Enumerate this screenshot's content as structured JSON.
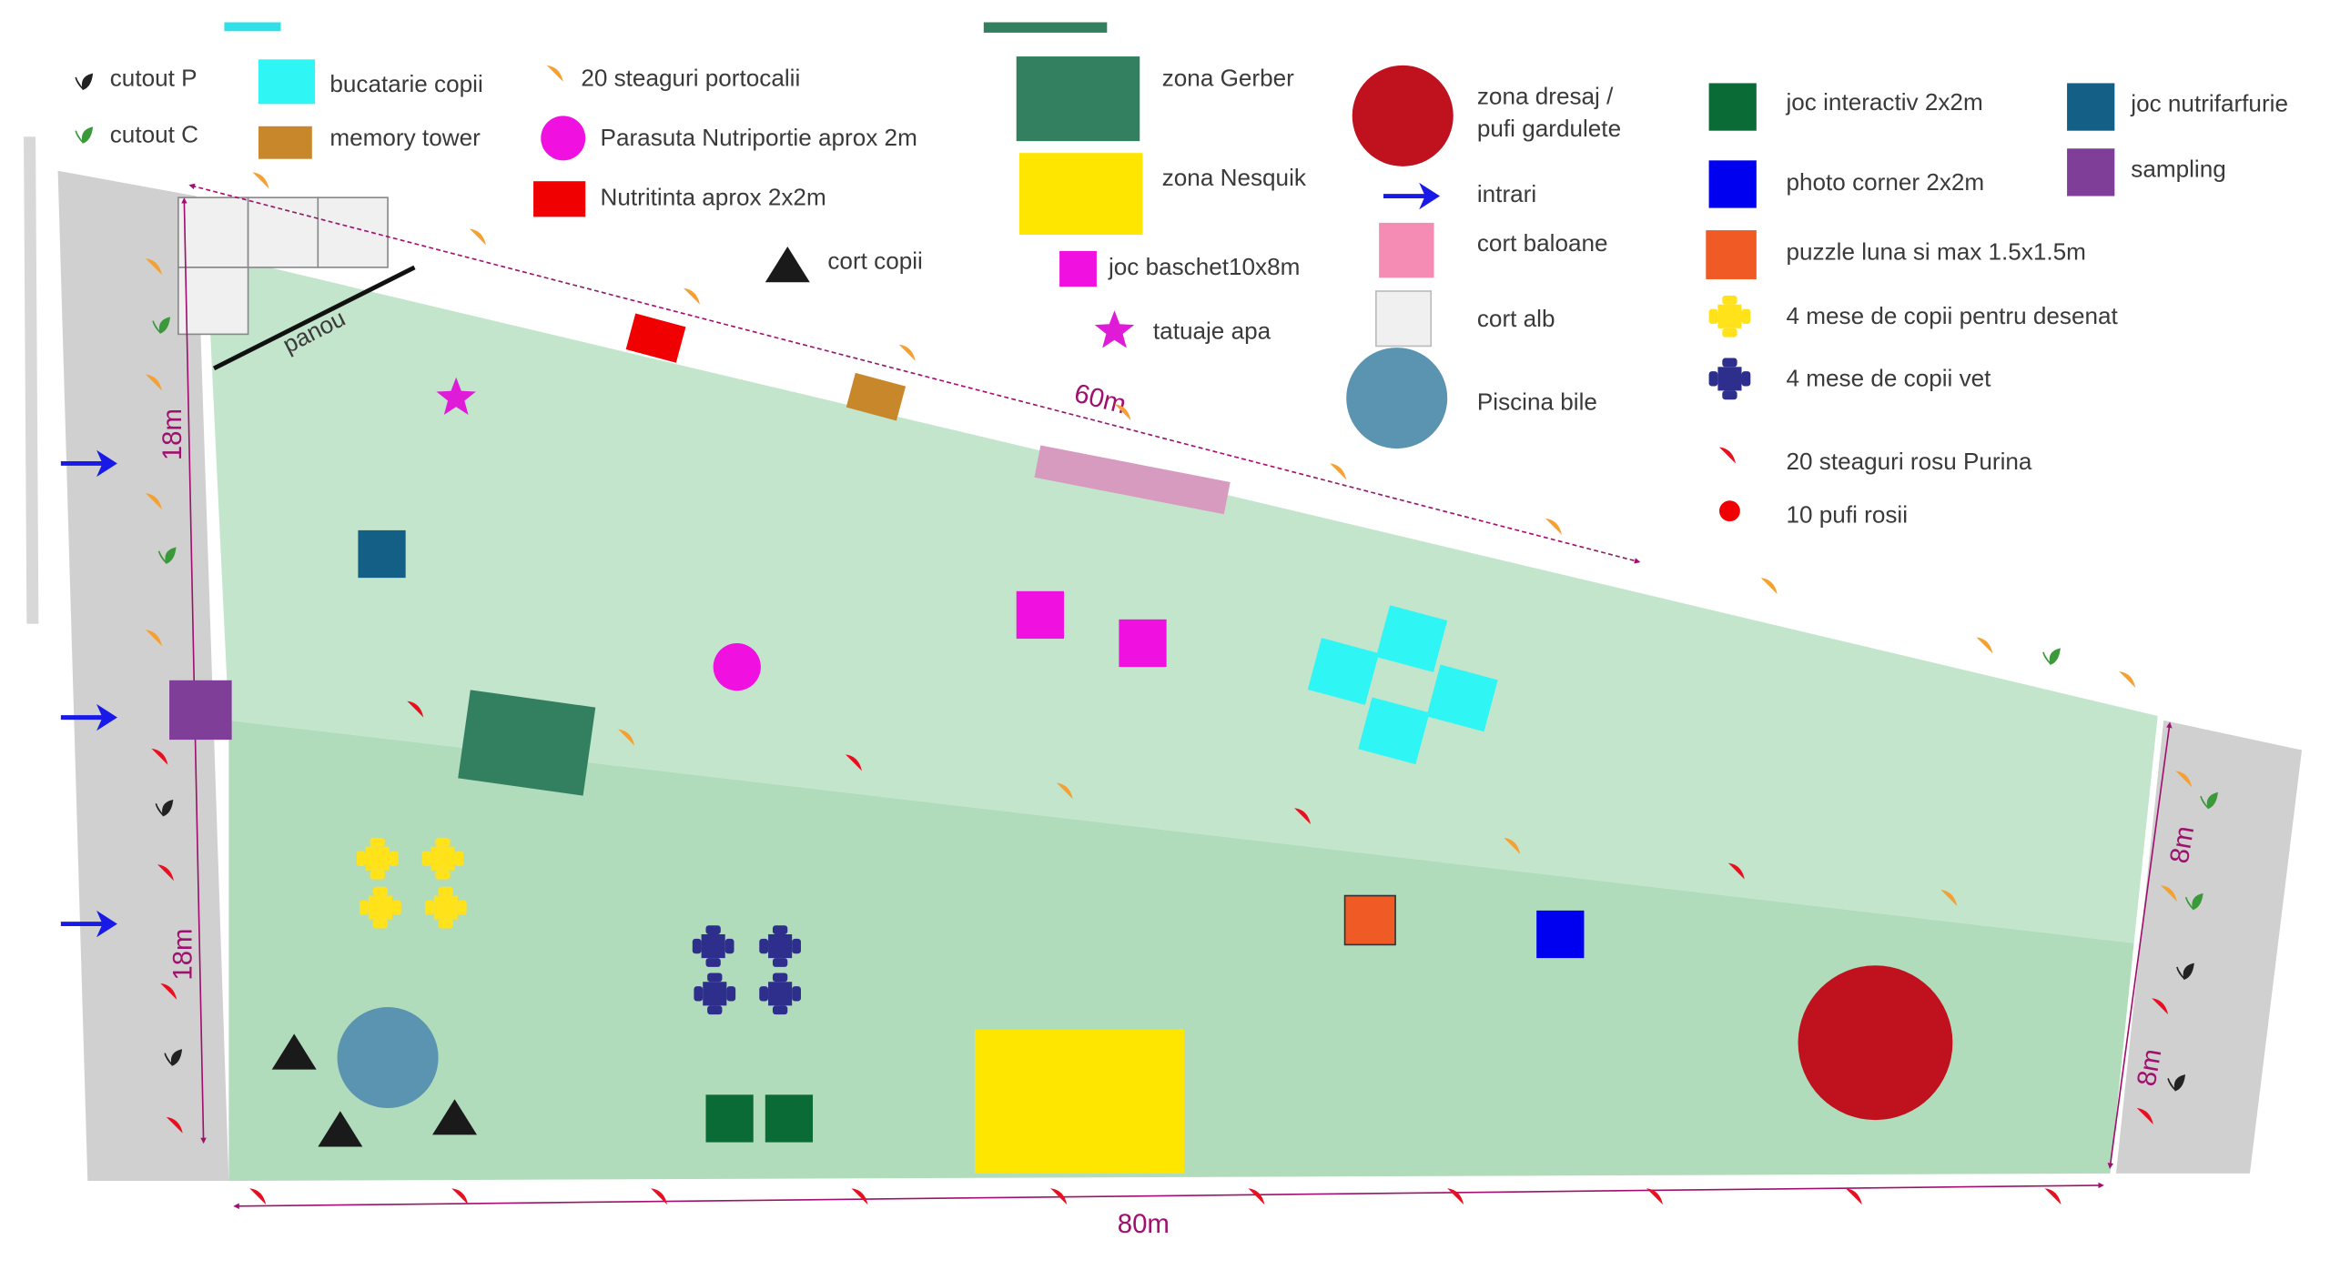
{
  "legend": [
    "cutout P",
    "cutout C",
    "bucatarie copii",
    "memory tower",
    "20 steaguri portocalii",
    "Parasuta Nutriportie aprox 2m",
    "Nutritinta aprox 2x2m",
    "cort copii",
    "zona Gerber",
    "zona Nesquik",
    "joc baschet10x8m",
    "tatuaje apa",
    "zona dresaj /",
    "pufi gardulete",
    "intrari",
    "cort baloane",
    "cort alb",
    "Piscina bile",
    "joc interactiv 2x2m",
    "photo corner 2x2m",
    "puzzle luna si max 1.5x1.5m",
    "4 mese de copii pentru desenat",
    "4 mese de copii vet",
    "20 steaguri rosu Purina",
    "10 pufi rosii",
    "joc nutrifarfurie",
    "sampling"
  ],
  "map": {
    "panel": "panou",
    "left_upper": "18m",
    "left_lower": "18m",
    "top": "60m",
    "right_upper": "8m",
    "right_lower": "8m",
    "bottom": "80m"
  }
}
